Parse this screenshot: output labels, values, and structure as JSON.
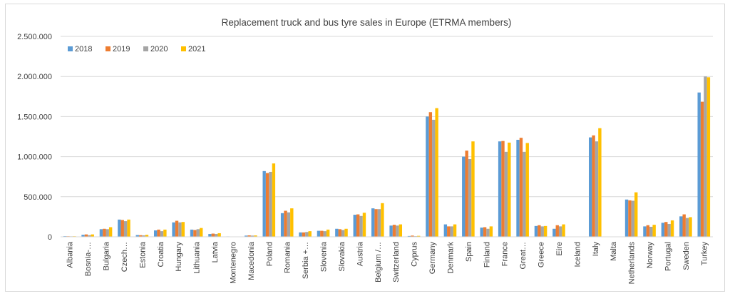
{
  "chart_data": {
    "type": "bar",
    "title": "Replacement truck and bus tyre sales in Europe (ETRMA members)",
    "xlabel": "",
    "ylabel": "",
    "ylim": [
      0,
      2500000
    ],
    "yticks": [
      0,
      500000,
      1000000,
      1500000,
      2000000,
      2500000
    ],
    "ytick_labels": [
      "0",
      "500.000",
      "1.000.000",
      "1.500.000",
      "2.000.000",
      "2.500.000"
    ],
    "grid": true,
    "legend_position": "top-left",
    "categories": [
      "Albania",
      "Bosnia-…",
      "Bulgaria",
      "Czech…",
      "Estonia",
      "Croatia",
      "Hungary",
      "Lithuania",
      "Latvia",
      "Montenegro",
      "Macedonia",
      "Poland",
      "Romania",
      "Serbia +…",
      "Slovenia",
      "Slovakia",
      "Austria",
      "Belgium /…",
      "Switzerland",
      "Cyprus",
      "Germany",
      "Denmark",
      "Spain",
      "Finland",
      "France",
      "Great…",
      "Greece",
      "Eire",
      "Iceland",
      "Italy",
      "Malta",
      "Netherlands",
      "Norway",
      "Portugal",
      "Sweden",
      "Turkey"
    ],
    "series": [
      {
        "name": "2018",
        "color": "#5b9bd5",
        "values": [
          8000,
          25000,
          95000,
          215000,
          22000,
          80000,
          180000,
          90000,
          35000,
          5000,
          15000,
          820000,
          295000,
          55000,
          75000,
          100000,
          275000,
          355000,
          140000,
          10000,
          1500000,
          155000,
          1000000,
          115000,
          1190000,
          1210000,
          135000,
          100000,
          0,
          1240000,
          0,
          465000,
          130000,
          175000,
          255000,
          1800000
        ]
      },
      {
        "name": "2019",
        "color": "#ed7d31",
        "values": [
          7000,
          30000,
          100000,
          210000,
          20000,
          90000,
          200000,
          85000,
          40000,
          4000,
          18000,
          795000,
          325000,
          55000,
          75000,
          95000,
          280000,
          345000,
          150000,
          15000,
          1555000,
          130000,
          1075000,
          120000,
          1195000,
          1235000,
          145000,
          145000,
          0,
          1265000,
          0,
          455000,
          145000,
          185000,
          280000,
          1685000
        ]
      },
      {
        "name": "2020",
        "color": "#a5a5a5",
        "values": [
          6000,
          20000,
          95000,
          195000,
          18000,
          70000,
          180000,
          95000,
          35000,
          3000,
          15000,
          810000,
          305000,
          60000,
          70000,
          85000,
          260000,
          345000,
          140000,
          8000,
          1460000,
          130000,
          970000,
          100000,
          1060000,
          1060000,
          130000,
          130000,
          0,
          1190000,
          0,
          450000,
          125000,
          160000,
          235000,
          2000000
        ]
      },
      {
        "name": "2021",
        "color": "#ffc000",
        "values": [
          7000,
          30000,
          120000,
          215000,
          25000,
          90000,
          185000,
          110000,
          45000,
          4000,
          17000,
          915000,
          355000,
          70000,
          90000,
          100000,
          300000,
          420000,
          155000,
          12000,
          1605000,
          155000,
          1190000,
          130000,
          1175000,
          1170000,
          135000,
          155000,
          0,
          1355000,
          0,
          555000,
          150000,
          205000,
          245000,
          1990000
        ]
      }
    ]
  }
}
